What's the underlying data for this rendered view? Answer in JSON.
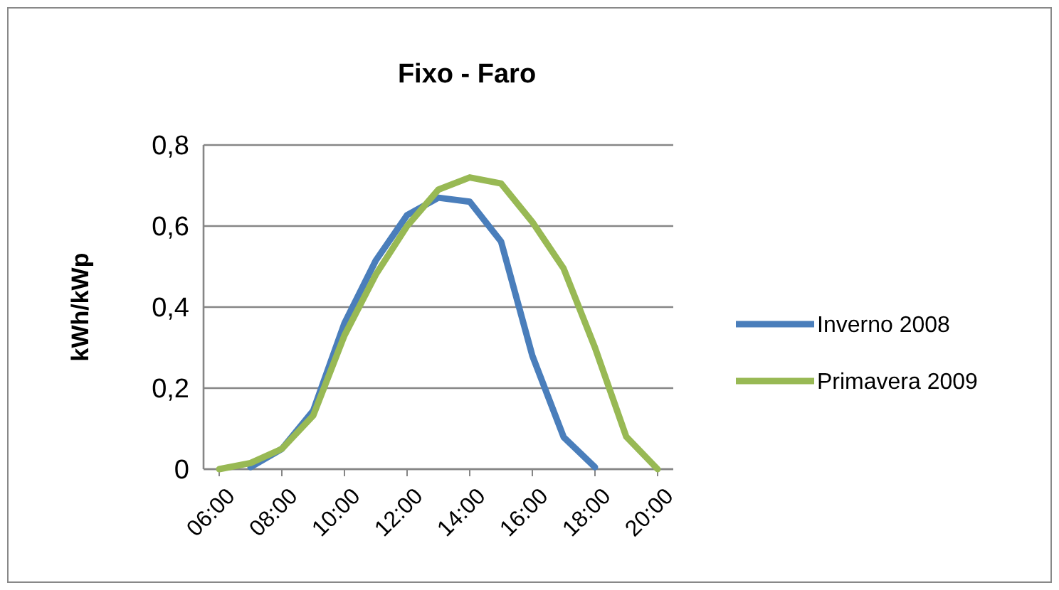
{
  "chart_data": {
    "type": "line",
    "title": "Fixo - Faro",
    "ylabel": "kWh/kWp",
    "xlim": [
      5.5,
      20.5
    ],
    "xticks": [
      {
        "value": 6,
        "label": "06:00"
      },
      {
        "value": 8,
        "label": "08:00"
      },
      {
        "value": 10,
        "label": "10:00"
      },
      {
        "value": 12,
        "label": "12:00"
      },
      {
        "value": 14,
        "label": "14:00"
      },
      {
        "value": 16,
        "label": "16:00"
      },
      {
        "value": 18,
        "label": "18:00"
      },
      {
        "value": 20,
        "label": "20:00"
      }
    ],
    "ylim": [
      0,
      0.8
    ],
    "yticks": [
      {
        "value": 0,
        "label": "0"
      },
      {
        "value": 0.2,
        "label": "0,2"
      },
      {
        "value": 0.4,
        "label": "0,4"
      },
      {
        "value": 0.6,
        "label": "0,6"
      },
      {
        "value": 0.8,
        "label": "0,8"
      }
    ],
    "grid": "y",
    "legend": "right",
    "marker": "none",
    "line_style": "solid",
    "series": [
      {
        "name": "Inverno 2008",
        "color": "#4a7ebb",
        "x": [
          7,
          8,
          9,
          10,
          11,
          12,
          13,
          14,
          15,
          16,
          17,
          18
        ],
        "values": [
          0.005,
          0.05,
          0.144,
          0.36,
          0.515,
          0.627,
          0.67,
          0.66,
          0.562,
          0.28,
          0.079,
          0.005
        ]
      },
      {
        "name": "Primavera 2009",
        "color": "#98b954",
        "x": [
          6,
          7,
          8,
          9,
          10,
          11,
          12,
          13,
          14,
          15,
          16,
          17,
          18,
          19,
          20
        ],
        "values": [
          0,
          0.015,
          0.05,
          0.132,
          0.33,
          0.48,
          0.6,
          0.69,
          0.72,
          0.705,
          0.61,
          0.495,
          0.3,
          0.08,
          0
        ]
      }
    ]
  }
}
